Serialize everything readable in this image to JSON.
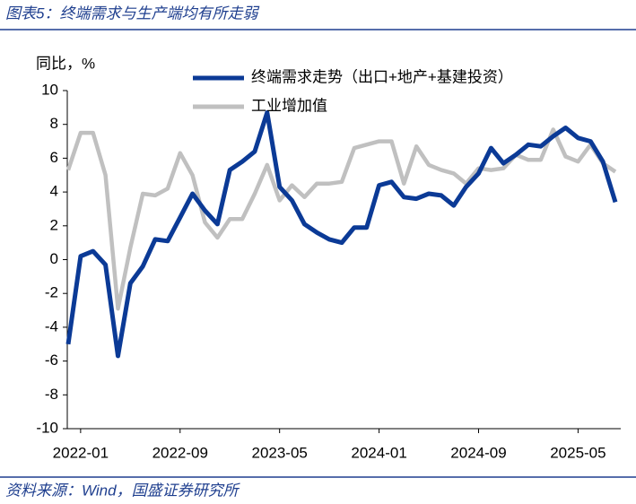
{
  "header": {
    "title": "图表5：终端需求与生产端均有所走弱"
  },
  "chart_data": {
    "type": "line",
    "y_label": "同比，%",
    "categories": [
      null,
      "2022-01",
      null,
      null,
      null,
      null,
      null,
      null,
      null,
      "2022-09",
      null,
      null,
      null,
      null,
      null,
      null,
      null,
      "2023-05",
      null,
      null,
      null,
      null,
      null,
      null,
      null,
      "2024-01",
      null,
      null,
      null,
      null,
      null,
      null,
      null,
      "2024-09",
      null,
      null,
      null,
      null,
      null,
      null,
      null,
      "2025-05",
      null,
      null,
      null
    ],
    "series": [
      {
        "name": "终端需求走势（出口+地产+基建投资）",
        "color": "#0b3a96",
        "values": [
          -5.0,
          0.2,
          0.5,
          -0.3,
          -5.7,
          -1.4,
          -0.4,
          1.2,
          1.1,
          2.5,
          3.9,
          2.9,
          2.1,
          5.3,
          5.8,
          6.4,
          8.7,
          4.3,
          3.5,
          2.1,
          1.6,
          1.2,
          1.0,
          1.9,
          1.9,
          4.4,
          4.6,
          3.7,
          3.6,
          3.9,
          3.8,
          3.2,
          4.3,
          5.1,
          6.6,
          5.7,
          6.2,
          6.8,
          6.7,
          7.3,
          7.8,
          7.2,
          7.0,
          5.8,
          3.4
        ]
      },
      {
        "name": "工业增加值",
        "color": "#c0c0c0",
        "values": [
          5.3,
          7.5,
          7.5,
          5.0,
          -2.9,
          0.7,
          3.9,
          3.8,
          4.2,
          6.3,
          5.0,
          2.2,
          1.3,
          2.4,
          2.4,
          3.9,
          5.6,
          3.5,
          4.4,
          3.7,
          4.5,
          4.5,
          4.6,
          6.6,
          6.8,
          7.0,
          7.0,
          4.5,
          6.7,
          5.6,
          5.3,
          5.1,
          4.5,
          5.4,
          5.3,
          5.4,
          6.2,
          5.9,
          5.9,
          7.7,
          6.1,
          5.8,
          6.8,
          5.7,
          5.2
        ]
      }
    ],
    "ylim": [
      -10,
      10
    ],
    "yticks": [
      -10,
      -8,
      -6,
      -4,
      -2,
      0,
      2,
      4,
      6,
      8,
      10
    ]
  },
  "footer": {
    "source": "资料来源：Wind，国盛证券研究所"
  }
}
